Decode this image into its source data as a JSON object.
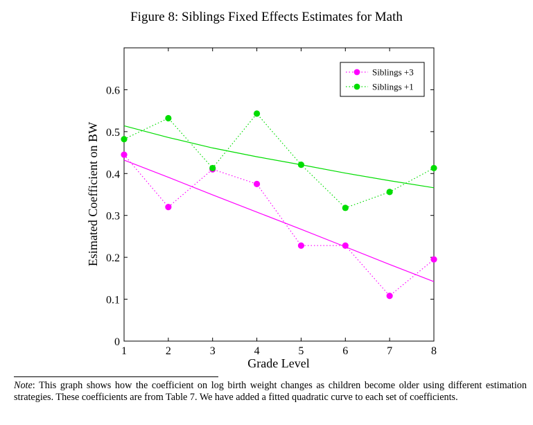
{
  "figure": {
    "title": "Figure 8: Siblings Fixed Effects Estimates for Math"
  },
  "chart_data": {
    "type": "line",
    "title": "Figure 8: Siblings Fixed Effects Estimates for Math",
    "xlabel": "Grade Level",
    "ylabel": "Esimated Coefficient on BW",
    "xlim": [
      1,
      8
    ],
    "ylim": [
      0,
      0.7
    ],
    "xticks": [
      1,
      2,
      3,
      4,
      5,
      6,
      7,
      8
    ],
    "yticks": [
      0,
      0.1,
      0.2,
      0.3,
      0.4,
      0.5,
      0.6
    ],
    "ytick_labels": [
      "0",
      "0.1",
      "0.2",
      "0.3",
      "0.4",
      "0.5",
      "0.6"
    ],
    "grid": false,
    "legend_position": "top-right",
    "x": [
      1,
      2,
      3,
      4,
      5,
      6,
      7,
      8
    ],
    "series": [
      {
        "name": "Siblings +3",
        "color": "#ff00ff",
        "values": [
          0.445,
          0.32,
          0.41,
          0.375,
          0.228,
          0.228,
          0.108,
          0.195
        ],
        "fit": [
          0.432,
          0.391,
          0.349,
          0.308,
          0.267,
          0.225,
          0.183,
          0.142
        ]
      },
      {
        "name": "Siblings +1",
        "color": "#00dd00",
        "values": [
          0.482,
          0.532,
          0.413,
          0.543,
          0.421,
          0.318,
          0.356,
          0.413
        ],
        "fit": [
          0.514,
          0.486,
          0.461,
          0.44,
          0.421,
          0.401,
          0.383,
          0.366
        ]
      }
    ]
  },
  "note": {
    "label": "Note",
    "text": ": This graph shows how the coefficient on log birth weight changes as children become older using different estimation strategies. These coefficients are from Table 7. We have added a fitted quadratic curve to each set of coefficients."
  }
}
